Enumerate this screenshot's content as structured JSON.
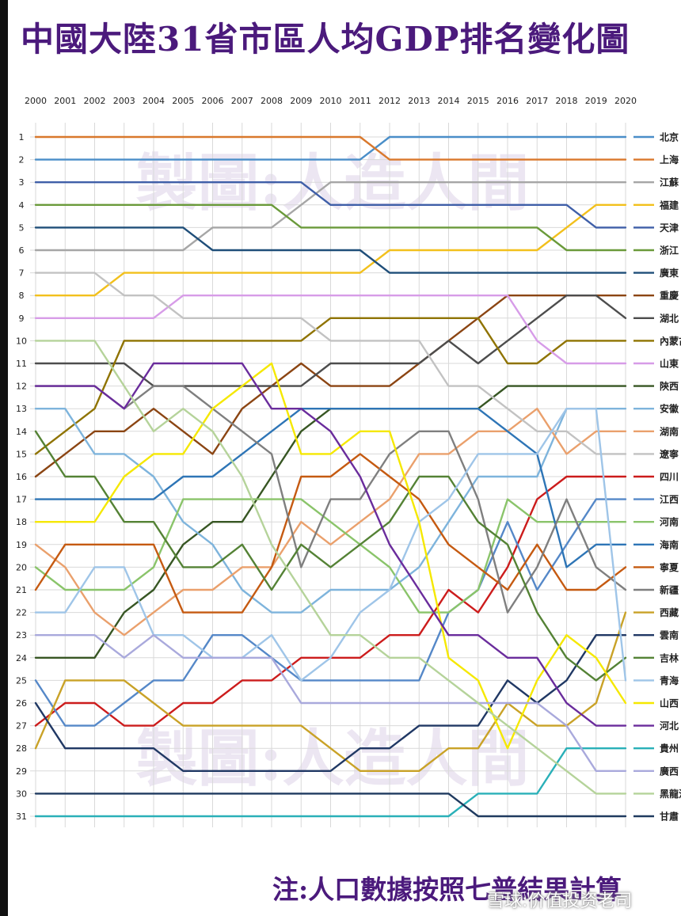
{
  "title": "中國大陸31省市區人均GDP排名變化圖",
  "footnote": "注:人口數據按照七普結果計算",
  "watermark_text": "雪球:价值投资老司",
  "bg_watermark": "製圖:人造人間",
  "chart_data": {
    "type": "line",
    "x": [
      2000,
      2001,
      2002,
      2003,
      2004,
      2005,
      2006,
      2007,
      2008,
      2009,
      2010,
      2011,
      2012,
      2013,
      2014,
      2015,
      2016,
      2017,
      2018,
      2019,
      2020
    ],
    "x_labels": [
      "2000",
      "2001",
      "2002",
      "2003",
      "2004",
      "2005",
      "2006",
      "2007",
      "2008",
      "2009",
      "2010",
      "2011",
      "2012",
      "2013",
      "2014",
      "2015",
      "2016",
      "2017",
      "2018",
      "2019",
      "2020"
    ],
    "y_labels": [
      "1",
      "2",
      "3",
      "4",
      "5",
      "6",
      "7",
      "8",
      "9",
      "10",
      "11",
      "12",
      "13",
      "14",
      "15",
      "16",
      "17",
      "18",
      "19",
      "20",
      "21",
      "22",
      "23",
      "24",
      "25",
      "26",
      "27",
      "28",
      "29",
      "30",
      "31"
    ],
    "ylim": [
      1,
      31
    ],
    "y_inverted": true,
    "grid": true,
    "legend_position": "right",
    "series": [
      {
        "name": "北京",
        "color": "#4a8ec8",
        "values": [
          2,
          2,
          2,
          2,
          2,
          2,
          2,
          2,
          2,
          2,
          2,
          2,
          1,
          1,
          1,
          1,
          1,
          1,
          1,
          1,
          1
        ]
      },
      {
        "name": "上海",
        "color": "#d9782c",
        "values": [
          1,
          1,
          1,
          1,
          1,
          1,
          1,
          1,
          1,
          1,
          1,
          1,
          2,
          2,
          2,
          2,
          2,
          2,
          2,
          2,
          2
        ]
      },
      {
        "name": "江蘇",
        "color": "#a6a6a6",
        "values": [
          6,
          6,
          6,
          6,
          6,
          6,
          5,
          5,
          5,
          4,
          3,
          3,
          3,
          3,
          3,
          3,
          3,
          3,
          3,
          3,
          3
        ]
      },
      {
        "name": "福建",
        "color": "#f2c01c",
        "values": [
          8,
          8,
          8,
          7,
          7,
          7,
          7,
          7,
          7,
          7,
          7,
          7,
          6,
          6,
          6,
          6,
          6,
          6,
          5,
          4,
          4
        ]
      },
      {
        "name": "天津",
        "color": "#3f5fa8",
        "values": [
          3,
          3,
          3,
          3,
          3,
          3,
          3,
          3,
          3,
          3,
          4,
          4,
          4,
          4,
          4,
          4,
          4,
          4,
          4,
          5,
          5
        ]
      },
      {
        "name": "浙江",
        "color": "#6a9a3a",
        "values": [
          4,
          4,
          4,
          4,
          4,
          4,
          4,
          4,
          4,
          5,
          5,
          5,
          5,
          5,
          5,
          5,
          5,
          5,
          6,
          6,
          6
        ]
      },
      {
        "name": "廣東",
        "color": "#1f4e79",
        "values": [
          5,
          5,
          5,
          5,
          5,
          5,
          6,
          6,
          6,
          6,
          6,
          6,
          7,
          7,
          7,
          7,
          7,
          7,
          7,
          7,
          7
        ]
      },
      {
        "name": "重慶",
        "color": "#8b4513",
        "values": [
          16,
          15,
          14,
          14,
          13,
          14,
          15,
          13,
          12,
          11,
          12,
          12,
          12,
          11,
          10,
          9,
          8,
          8,
          8,
          8,
          8
        ]
      },
      {
        "name": "湖北",
        "color": "#4d4d4d",
        "values": [
          11,
          11,
          11,
          11,
          12,
          12,
          12,
          12,
          12,
          12,
          11,
          11,
          11,
          11,
          10,
          11,
          10,
          9,
          8,
          8,
          9
        ]
      },
      {
        "name": "內蒙古",
        "color": "#8f7300",
        "values": [
          15,
          14,
          13,
          10,
          10,
          10,
          10,
          10,
          10,
          10,
          9,
          9,
          9,
          9,
          9,
          9,
          11,
          11,
          10,
          10,
          10
        ]
      },
      {
        "name": "山東",
        "color": "#d79ce8",
        "values": [
          9,
          9,
          9,
          9,
          9,
          8,
          8,
          8,
          8,
          8,
          8,
          8,
          8,
          8,
          8,
          8,
          8,
          10,
          11,
          11,
          11
        ]
      },
      {
        "name": "陝西",
        "color": "#375623",
        "values": [
          24,
          24,
          24,
          22,
          21,
          19,
          18,
          18,
          16,
          14,
          13,
          13,
          13,
          13,
          13,
          13,
          12,
          12,
          12,
          12,
          12
        ]
      },
      {
        "name": "安徽",
        "color": "#7eb4dc",
        "values": [
          13,
          13,
          15,
          15,
          16,
          18,
          19,
          21,
          22,
          22,
          21,
          21,
          21,
          20,
          18,
          16,
          16,
          16,
          13,
          13,
          13
        ]
      },
      {
        "name": "湖南",
        "color": "#eaa06c",
        "values": [
          19,
          20,
          22,
          23,
          22,
          21,
          21,
          20,
          20,
          18,
          19,
          18,
          17,
          15,
          15,
          14,
          14,
          13,
          15,
          14,
          14
        ]
      },
      {
        "name": "遼寧",
        "color": "#c2c2c2",
        "values": [
          7,
          7,
          7,
          8,
          8,
          9,
          9,
          9,
          9,
          9,
          10,
          10,
          10,
          10,
          12,
          12,
          13,
          14,
          14,
          15,
          15
        ]
      },
      {
        "name": "四川",
        "color": "#cc1c1c",
        "values": [
          27,
          26,
          26,
          27,
          27,
          26,
          26,
          25,
          25,
          24,
          24,
          24,
          23,
          23,
          21,
          22,
          20,
          17,
          16,
          16,
          16
        ]
      },
      {
        "name": "江西",
        "color": "#5588c8",
        "values": [
          25,
          27,
          27,
          26,
          25,
          25,
          23,
          23,
          24,
          25,
          25,
          25,
          25,
          25,
          22,
          21,
          18,
          21,
          19,
          17,
          17
        ]
      },
      {
        "name": "河南",
        "color": "#8ac46a",
        "values": [
          20,
          21,
          21,
          21,
          20,
          17,
          17,
          17,
          17,
          17,
          18,
          19,
          20,
          22,
          22,
          21,
          17,
          18,
          18,
          18,
          18
        ]
      },
      {
        "name": "海南",
        "color": "#2e75b6",
        "values": [
          17,
          17,
          17,
          17,
          17,
          16,
          16,
          15,
          14,
          13,
          13,
          13,
          13,
          13,
          13,
          13,
          14,
          15,
          20,
          19,
          19
        ]
      },
      {
        "name": "寧夏",
        "color": "#c55a11",
        "values": [
          21,
          19,
          19,
          19,
          19,
          22,
          22,
          22,
          20,
          16,
          16,
          15,
          16,
          17,
          19,
          20,
          21,
          19,
          21,
          21,
          20
        ]
      },
      {
        "name": "新疆",
        "color": "#7f7f7f",
        "values": [
          12,
          12,
          12,
          13,
          12,
          12,
          13,
          14,
          15,
          20,
          17,
          17,
          15,
          14,
          14,
          17,
          22,
          20,
          17,
          20,
          21
        ]
      },
      {
        "name": "西藏",
        "color": "#c9a227",
        "values": [
          28,
          25,
          25,
          25,
          26,
          27,
          27,
          27,
          27,
          27,
          28,
          29,
          29,
          29,
          28,
          28,
          26,
          27,
          27,
          26,
          22
        ]
      },
      {
        "name": "雲南",
        "color": "#203864",
        "values": [
          26,
          28,
          28,
          28,
          28,
          29,
          29,
          29,
          29,
          29,
          29,
          28,
          28,
          27,
          27,
          27,
          25,
          26,
          25,
          23,
          23
        ]
      },
      {
        "name": "吉林",
        "color": "#548235",
        "values": [
          14,
          16,
          16,
          18,
          18,
          20,
          20,
          19,
          21,
          19,
          20,
          19,
          18,
          16,
          16,
          18,
          19,
          22,
          24,
          25,
          24
        ]
      },
      {
        "name": "青海",
        "color": "#9fc5e8",
        "values": [
          22,
          22,
          20,
          20,
          23,
          23,
          24,
          24,
          23,
          25,
          24,
          22,
          21,
          18,
          17,
          15,
          15,
          15,
          13,
          13,
          25
        ]
      },
      {
        "name": "山西",
        "color": "#f5e800",
        "values": [
          18,
          18,
          18,
          16,
          15,
          15,
          13,
          12,
          11,
          15,
          15,
          14,
          14,
          18,
          24,
          25,
          28,
          25,
          23,
          24,
          26
        ]
      },
      {
        "name": "河北",
        "color": "#6a2c9c",
        "values": [
          12,
          12,
          12,
          13,
          11,
          11,
          11,
          11,
          13,
          13,
          14,
          16,
          19,
          21,
          23,
          23,
          24,
          24,
          26,
          27,
          27
        ]
      },
      {
        "name": "貴州",
        "color": "#2ab0b8",
        "values": [
          31,
          31,
          31,
          31,
          31,
          31,
          31,
          31,
          31,
          31,
          31,
          31,
          31,
          31,
          31,
          30,
          30,
          30,
          28,
          28,
          28
        ]
      },
      {
        "name": "廣西",
        "color": "#a9a9dc",
        "values": [
          23,
          23,
          23,
          24,
          23,
          24,
          24,
          24,
          24,
          26,
          26,
          26,
          26,
          26,
          26,
          26,
          26,
          26,
          27,
          29,
          29
        ]
      },
      {
        "name": "黑龍江",
        "color": "#b5d39a",
        "values": [
          10,
          10,
          10,
          12,
          14,
          13,
          14,
          16,
          19,
          21,
          23,
          23,
          24,
          24,
          25,
          26,
          27,
          28,
          29,
          30,
          30
        ]
      },
      {
        "name": "甘肅",
        "color": "#1f3a5f",
        "values": [
          30,
          30,
          30,
          30,
          30,
          30,
          30,
          30,
          30,
          30,
          30,
          30,
          30,
          30,
          30,
          31,
          31,
          31,
          31,
          31,
          31
        ]
      }
    ]
  }
}
